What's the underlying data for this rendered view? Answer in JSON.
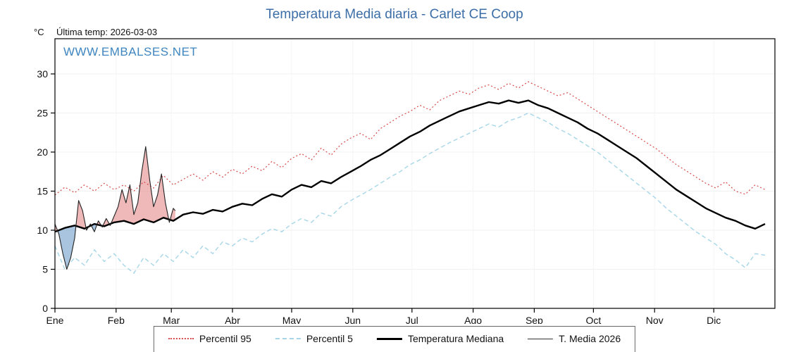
{
  "header": {
    "title": "Temperatura Media diaria - Carlet CE Coop",
    "y_unit": "°C",
    "last_temp_label": "Última temp: 2026-03-03",
    "watermark": "WWW.EMBALSES.NET"
  },
  "chart_data": {
    "type": "line",
    "title": "Temperatura Media diaria - Carlet CE Coop",
    "xlabel": "",
    "ylabel": "°C",
    "ylim": [
      0,
      32
    ],
    "yticks": [
      0,
      5,
      10,
      15,
      20,
      25,
      30
    ],
    "x_months": [
      "Ene",
      "Feb",
      "Mar",
      "Abr",
      "May",
      "Jun",
      "Jul",
      "Ago",
      "Sep",
      "Oct",
      "Nov",
      "Dic"
    ],
    "month_start_days": [
      1,
      32,
      60,
      91,
      121,
      152,
      182,
      213,
      244,
      274,
      305,
      335
    ],
    "days_in_year": 366,
    "grid": true,
    "legend_position": "bottom",
    "annotation": "Última temp: 2026-03-03",
    "x_days": [
      1,
      6,
      11,
      16,
      21,
      26,
      31,
      36,
      41,
      46,
      51,
      56,
      61,
      66,
      71,
      76,
      81,
      86,
      91,
      96,
      101,
      106,
      111,
      116,
      121,
      126,
      131,
      136,
      141,
      146,
      151,
      156,
      161,
      166,
      171,
      176,
      181,
      186,
      191,
      196,
      201,
      206,
      211,
      216,
      221,
      226,
      231,
      236,
      241,
      246,
      251,
      256,
      261,
      266,
      271,
      276,
      281,
      286,
      291,
      296,
      301,
      306,
      311,
      316,
      321,
      326,
      331,
      336,
      341,
      346,
      351,
      356,
      361
    ],
    "series": [
      {
        "name": "Percentil 95",
        "color": "#d94a4a",
        "style": "dotted",
        "values": [
          14.5,
          15.5,
          14.8,
          15.8,
          15.0,
          16.0,
          15.2,
          15.8,
          15.0,
          16.2,
          15.4,
          17.0,
          15.8,
          16.5,
          17.2,
          16.4,
          17.5,
          16.8,
          17.8,
          17.2,
          18.2,
          17.6,
          18.8,
          18.0,
          19.2,
          19.8,
          19.0,
          20.5,
          19.6,
          21.0,
          21.8,
          22.4,
          21.6,
          23.0,
          23.8,
          24.6,
          25.2,
          26.0,
          25.4,
          26.6,
          27.2,
          27.8,
          27.4,
          28.2,
          28.6,
          28.0,
          28.8,
          28.2,
          29.0,
          28.4,
          27.8,
          27.2,
          27.6,
          26.8,
          26.0,
          25.2,
          24.4,
          23.6,
          22.8,
          22.0,
          21.2,
          20.4,
          19.4,
          18.4,
          17.6,
          16.8,
          16.0,
          15.4,
          16.2,
          15.0,
          14.6,
          15.8,
          15.2
        ]
      },
      {
        "name": "Percentil 5",
        "color": "#a6d6e8",
        "style": "dashed",
        "values": [
          8.0,
          5.0,
          6.5,
          5.5,
          7.5,
          6.0,
          7.0,
          5.5,
          4.5,
          6.5,
          5.5,
          7.0,
          6.0,
          7.5,
          6.5,
          8.0,
          7.0,
          8.5,
          8.0,
          9.0,
          8.5,
          9.5,
          10.2,
          9.8,
          10.8,
          11.5,
          11.0,
          12.2,
          11.8,
          13.0,
          13.8,
          14.5,
          15.2,
          16.0,
          16.8,
          17.5,
          18.4,
          19.0,
          19.8,
          20.5,
          21.2,
          21.8,
          22.4,
          23.0,
          23.6,
          23.2,
          24.0,
          24.4,
          25.0,
          24.4,
          23.8,
          23.0,
          22.4,
          21.6,
          20.8,
          20.0,
          19.0,
          18.0,
          17.0,
          16.0,
          15.0,
          14.0,
          12.8,
          11.8,
          10.8,
          9.8,
          9.0,
          8.2,
          7.0,
          6.2,
          5.2,
          7.0,
          6.8
        ]
      },
      {
        "name": "Temperatura Mediana",
        "color": "#000000",
        "style": "solid-thick",
        "values": [
          9.8,
          10.3,
          10.6,
          10.2,
          10.8,
          10.5,
          11.0,
          11.2,
          10.8,
          11.4,
          11.0,
          11.6,
          11.2,
          12.0,
          12.3,
          12.1,
          12.6,
          12.4,
          13.0,
          13.4,
          13.2,
          14.0,
          14.6,
          14.3,
          15.2,
          15.8,
          15.5,
          16.3,
          16.0,
          16.8,
          17.5,
          18.2,
          19.0,
          19.6,
          20.4,
          21.2,
          22.0,
          22.6,
          23.4,
          24.0,
          24.6,
          25.2,
          25.6,
          26.0,
          26.4,
          26.2,
          26.6,
          26.3,
          26.6,
          26.0,
          25.6,
          25.0,
          24.4,
          23.8,
          23.0,
          22.4,
          21.6,
          20.8,
          20.0,
          19.2,
          18.2,
          17.2,
          16.2,
          15.2,
          14.4,
          13.6,
          12.8,
          12.2,
          11.6,
          11.2,
          10.6,
          10.2,
          10.8
        ]
      },
      {
        "name": "T. Media 2026",
        "color": "#222222",
        "style": "solid-thin",
        "x": [
          1,
          3,
          5,
          7,
          9,
          11,
          13,
          15,
          17,
          19,
          21,
          23,
          25,
          27,
          29,
          31,
          33,
          35,
          37,
          39,
          41,
          43,
          45,
          47,
          49,
          51,
          53,
          55,
          57,
          59,
          61,
          62
        ],
        "values": [
          10.8,
          9.5,
          7.0,
          5.0,
          6.5,
          9.0,
          13.8,
          12.5,
          10.0,
          10.8,
          9.8,
          11.2,
          10.4,
          11.5,
          10.6,
          11.8,
          13.0,
          15.2,
          13.5,
          15.8,
          12.0,
          13.5,
          17.5,
          20.7,
          16.5,
          13.0,
          14.5,
          17.2,
          13.5,
          11.0,
          12.8,
          12.5
        ]
      }
    ],
    "fill_colors": {
      "above_median": "#e58a8a",
      "below_median": "#6f9cc9"
    }
  }
}
